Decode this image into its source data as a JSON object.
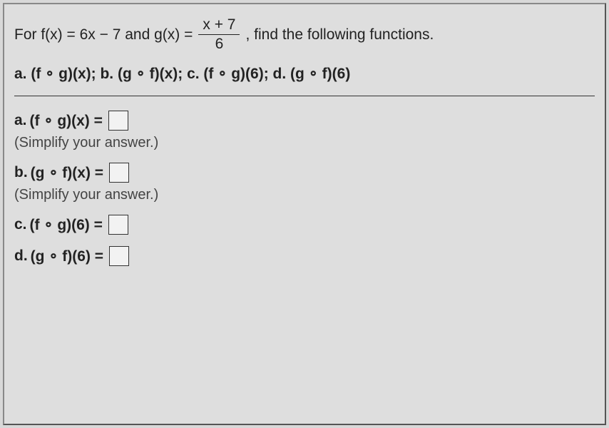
{
  "problem": {
    "prefix": "For f(x) = 6x − 7 and g(x) = ",
    "frac_num": "x + 7",
    "frac_den": "6",
    "suffix": ", find the following functions.",
    "tasks": "a. (f ∘ g)(x); b. (g ∘ f)(x); c. (f ∘ g)(6); d. (g ∘ f)(6)"
  },
  "parts": {
    "a": {
      "label": "a.",
      "expr": "(f ∘ g)(x) =",
      "hint": "(Simplify your answer.)"
    },
    "b": {
      "label": "b.",
      "expr": "(g ∘ f)(x) =",
      "hint": "(Simplify your answer.)"
    },
    "c": {
      "label": "c.",
      "expr": "(f ∘ g)(6) ="
    },
    "d": {
      "label": "d.",
      "expr": "(g ∘ f)(6) ="
    }
  },
  "colors": {
    "background": "#dedede",
    "border": "#555",
    "text": "#222",
    "box_border": "#333",
    "box_bg": "#f2f2f2"
  }
}
